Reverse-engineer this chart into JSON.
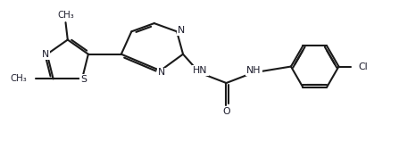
{
  "bg_color": "#ffffff",
  "line_color": "#1a1a1a",
  "text_color": "#1a1a2a",
  "lw": 1.5,
  "figsize": [
    4.47,
    1.86
  ],
  "dpi": 100,
  "xlim": [
    0,
    9.5
  ],
  "ylim": [
    0.2,
    4.2
  ],
  "font_size": 7.8
}
